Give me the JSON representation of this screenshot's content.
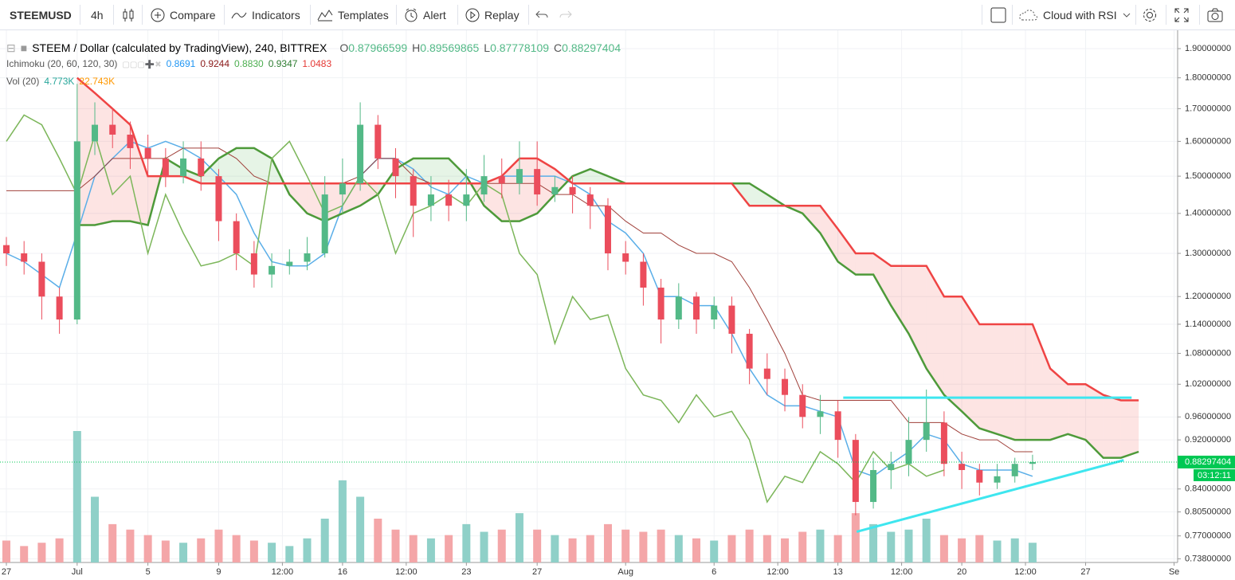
{
  "toolbar": {
    "symbol": "STEEMUSD",
    "interval": "4h",
    "compare": "Compare",
    "indicators": "Indicators",
    "templates": "Templates",
    "alert": "Alert",
    "replay": "Replay",
    "layout": "Cloud with RSI"
  },
  "chart_data": {
    "type": "candlestick",
    "title": "STEEM / Dollar (calculated by TradingView), 240, BITTREX",
    "ohlc_legend": [
      {
        "label": "O",
        "value": "0.87966599"
      },
      {
        "label": "H",
        "value": "0.89569865"
      },
      {
        "label": "L",
        "value": "0.87778109"
      },
      {
        "label": "C",
        "value": "0.88297404"
      }
    ],
    "ichimoku_legend": {
      "name": "Ichimoku (20, 60, 120, 30)",
      "values": [
        "0.8691",
        "0.9244",
        "0.8830",
        "0.9347",
        "1.0483"
      ],
      "colors": [
        "#2196f3",
        "#8b1a1a",
        "#4caf50",
        "#2e7d32",
        "#e53935"
      ]
    },
    "volume_legend": {
      "name": "Vol (20)",
      "values": [
        "4.773K",
        "22.743K"
      ],
      "colors": [
        "#26a69a",
        "#ff9800"
      ]
    },
    "x": [
      0,
      1,
      2,
      3,
      4,
      5,
      6,
      7,
      8,
      9,
      10,
      11,
      12,
      13,
      14,
      15,
      16,
      17,
      18,
      19,
      20,
      21,
      22,
      23,
      24,
      25,
      26,
      27,
      28,
      29,
      30,
      31,
      32,
      33,
      34,
      35,
      36,
      37,
      38,
      39,
      40,
      41,
      42,
      43,
      44,
      45,
      46,
      47,
      48,
      49,
      50,
      51,
      52,
      53,
      54,
      55,
      56,
      57,
      58,
      59,
      60,
      61,
      62,
      63,
      64
    ],
    "open": [
      1.32,
      1.3,
      1.28,
      1.2,
      1.15,
      1.6,
      1.65,
      1.62,
      1.58,
      1.55,
      1.5,
      1.55,
      1.5,
      1.38,
      1.3,
      1.25,
      1.27,
      1.28,
      1.3,
      1.45,
      1.48,
      1.65,
      1.55,
      1.5,
      1.42,
      1.45,
      1.42,
      1.45,
      1.5,
      1.48,
      1.52,
      1.45,
      1.47,
      1.45,
      1.42,
      1.3,
      1.28,
      1.22,
      1.15,
      1.2,
      1.15,
      1.18,
      1.12,
      1.05,
      1.03,
      1.0,
      0.96,
      0.97,
      0.92,
      0.82,
      0.87,
      0.88,
      0.92,
      0.95,
      0.88,
      0.87,
      0.85,
      0.86,
      0.88,
      null,
      null,
      null,
      null,
      null,
      null
    ],
    "high": [
      1.34,
      1.33,
      1.3,
      1.22,
      1.78,
      1.72,
      1.7,
      1.66,
      1.62,
      1.58,
      1.6,
      1.6,
      1.52,
      1.4,
      1.33,
      1.3,
      1.31,
      1.34,
      1.5,
      1.55,
      1.72,
      1.68,
      1.58,
      1.52,
      1.5,
      1.49,
      1.52,
      1.56,
      1.55,
      1.6,
      1.6,
      1.5,
      1.5,
      1.47,
      1.44,
      1.33,
      1.3,
      1.24,
      1.23,
      1.21,
      1.2,
      1.2,
      1.13,
      1.08,
      1.05,
      1.02,
      1.0,
      0.99,
      0.93,
      0.89,
      0.9,
      0.96,
      1.01,
      0.97,
      0.9,
      0.88,
      0.88,
      0.89,
      0.895,
      null,
      null,
      null,
      null,
      null,
      null
    ],
    "low": [
      1.27,
      1.25,
      1.15,
      1.12,
      1.14,
      1.56,
      1.58,
      1.52,
      1.5,
      1.47,
      1.48,
      1.46,
      1.33,
      1.26,
      1.22,
      1.22,
      1.25,
      1.26,
      1.29,
      1.4,
      1.46,
      1.52,
      1.44,
      1.34,
      1.38,
      1.38,
      1.38,
      1.43,
      1.44,
      1.45,
      1.42,
      1.43,
      1.4,
      1.36,
      1.26,
      1.25,
      1.18,
      1.1,
      1.13,
      1.12,
      1.13,
      1.08,
      1.02,
      1.0,
      0.97,
      0.94,
      0.93,
      0.89,
      0.8,
      0.81,
      0.84,
      0.86,
      0.9,
      0.86,
      0.84,
      0.83,
      0.84,
      0.85,
      0.87,
      null,
      null,
      null,
      null,
      null,
      null
    ],
    "close": [
      1.3,
      1.28,
      1.2,
      1.15,
      1.6,
      1.65,
      1.62,
      1.58,
      1.55,
      1.5,
      1.55,
      1.5,
      1.38,
      1.3,
      1.25,
      1.27,
      1.28,
      1.3,
      1.45,
      1.48,
      1.65,
      1.55,
      1.5,
      1.42,
      1.45,
      1.42,
      1.45,
      1.5,
      1.48,
      1.52,
      1.45,
      1.47,
      1.45,
      1.42,
      1.3,
      1.28,
      1.22,
      1.15,
      1.2,
      1.15,
      1.18,
      1.12,
      1.05,
      1.03,
      1.0,
      0.96,
      0.97,
      0.92,
      0.82,
      0.87,
      0.88,
      0.92,
      0.95,
      0.88,
      0.87,
      0.85,
      0.86,
      0.88,
      0.883,
      null,
      null,
      null,
      null,
      null,
      null
    ],
    "colors": {
      "up": "#53b987",
      "down": "#eb4d5c",
      "volume_up": "#8fd0c8",
      "volume_down": "#f4a6a8"
    },
    "volume": [
      20,
      15,
      18,
      22,
      120,
      60,
      35,
      30,
      25,
      20,
      18,
      22,
      30,
      25,
      20,
      18,
      15,
      22,
      40,
      75,
      60,
      40,
      30,
      25,
      22,
      25,
      35,
      28,
      30,
      45,
      30,
      25,
      22,
      25,
      35,
      30,
      28,
      30,
      25,
      22,
      20,
      25,
      30,
      25,
      22,
      28,
      30,
      25,
      45,
      35,
      28,
      30,
      40,
      25,
      22,
      25,
      20,
      22,
      18,
      null,
      null,
      null,
      null,
      null,
      null
    ],
    "series": [
      {
        "color": "#5aaee8",
        "values": [
          1.3,
          1.28,
          1.25,
          1.22,
          1.35,
          1.5,
          1.55,
          1.6,
          1.58,
          1.6,
          1.58,
          1.55,
          1.5,
          1.45,
          1.35,
          1.28,
          1.27,
          1.27,
          1.3,
          1.42,
          1.5,
          1.55,
          1.55,
          1.52,
          1.47,
          1.45,
          1.5,
          1.48,
          1.5,
          1.5,
          1.5,
          1.5,
          1.48,
          1.45,
          1.38,
          1.35,
          1.3,
          1.2,
          1.2,
          1.18,
          1.18,
          1.12,
          1.05,
          1.0,
          0.98,
          0.98,
          0.97,
          0.96,
          0.87,
          0.86,
          0.88,
          0.9,
          0.93,
          0.92,
          0.88,
          0.87,
          0.87,
          0.87,
          0.86,
          null,
          null,
          null,
          null,
          null,
          null
        ]
      },
      {
        "color": "#a0403a",
        "values": [
          1.46,
          1.46,
          1.46,
          1.46,
          1.46,
          1.5,
          1.55,
          1.55,
          1.55,
          1.55,
          1.58,
          1.58,
          1.58,
          1.55,
          1.5,
          1.48,
          1.48,
          1.48,
          1.48,
          1.48,
          1.5,
          1.55,
          1.55,
          1.5,
          1.48,
          1.48,
          1.48,
          1.48,
          1.48,
          1.48,
          1.48,
          1.45,
          1.45,
          1.42,
          1.42,
          1.38,
          1.35,
          1.35,
          1.32,
          1.3,
          1.3,
          1.28,
          1.22,
          1.15,
          1.08,
          1.0,
          0.99,
          0.99,
          0.99,
          0.99,
          0.99,
          0.95,
          0.95,
          0.95,
          0.93,
          0.92,
          0.92,
          0.9,
          0.9,
          null,
          null,
          null,
          null,
          null,
          null
        ]
      },
      {
        "color": "#4e9a3a",
        "values": [
          null,
          null,
          null,
          null,
          1.37,
          1.37,
          1.38,
          1.38,
          1.37,
          1.55,
          1.52,
          1.5,
          1.55,
          1.58,
          1.58,
          1.55,
          1.45,
          1.4,
          1.38,
          1.4,
          1.42,
          1.45,
          1.52,
          1.55,
          1.55,
          1.55,
          1.5,
          1.42,
          1.38,
          1.38,
          1.4,
          1.45,
          1.5,
          1.52,
          1.5,
          1.48,
          1.48,
          1.48,
          1.48,
          1.48,
          1.48,
          1.48,
          1.48,
          1.45,
          1.42,
          1.4,
          1.35,
          1.28,
          1.25,
          1.25,
          1.18,
          1.12,
          1.05,
          1.0,
          0.97,
          0.94,
          0.93,
          0.92,
          0.92,
          0.92,
          0.93,
          0.92,
          0.89,
          0.89,
          0.9
        ]
      },
      {
        "color": "#ef4444",
        "values": [
          null,
          null,
          null,
          null,
          1.8,
          1.75,
          1.7,
          1.65,
          1.5,
          1.5,
          1.5,
          1.48,
          1.48,
          1.48,
          1.48,
          1.48,
          1.48,
          1.48,
          1.48,
          1.48,
          1.48,
          1.48,
          1.48,
          1.48,
          1.48,
          1.48,
          1.48,
          1.48,
          1.5,
          1.55,
          1.55,
          1.52,
          1.48,
          1.48,
          1.48,
          1.48,
          1.48,
          1.48,
          1.48,
          1.48,
          1.48,
          1.48,
          1.42,
          1.42,
          1.42,
          1.42,
          1.42,
          1.36,
          1.3,
          1.3,
          1.27,
          1.27,
          1.27,
          1.2,
          1.2,
          1.14,
          1.14,
          1.14,
          1.14,
          1.05,
          1.02,
          1.02,
          1.0,
          0.99,
          0.99
        ]
      },
      {
        "color": "#7cb65a",
        "values": [
          1.6,
          1.68,
          1.65,
          1.55,
          1.45,
          1.62,
          1.45,
          1.5,
          1.3,
          1.45,
          1.35,
          1.27,
          1.28,
          1.3,
          1.27,
          1.55,
          1.6,
          1.5,
          1.4,
          1.42,
          1.5,
          1.45,
          1.3,
          1.4,
          1.42,
          1.45,
          1.42,
          1.48,
          1.45,
          1.3,
          1.25,
          1.1,
          1.2,
          1.15,
          1.16,
          1.05,
          1.0,
          0.99,
          0.95,
          1.0,
          0.96,
          0.97,
          0.92,
          0.82,
          0.86,
          0.85,
          0.9,
          0.88,
          0.85,
          0.9,
          0.87,
          0.88,
          0.86,
          0.87,
          null,
          null,
          null,
          null,
          null,
          null,
          null,
          null,
          null,
          null,
          null
        ]
      }
    ],
    "cloud_colors": {
      "bull": "#4caf50",
      "bear": "#f44336"
    },
    "drawings": [
      {
        "color": "#3ee6ef",
        "x": [
          47.3,
          63.6
        ],
        "y": [
          0.995,
          0.995
        ]
      },
      {
        "color": "#3ee6ef",
        "x": [
          48.06,
          63.15
        ],
        "y": [
          0.776,
          0.886
        ]
      }
    ],
    "last_price": {
      "value": 0.88297404,
      "countdown": "03:12:11",
      "color": "#00c853"
    },
    "log_scale": true,
    "grid": true,
    "xlim": [
      -0.36,
      66.2
    ],
    "xticks": [
      {
        "value": 0,
        "label": "27"
      },
      {
        "value": 4,
        "label": "Jul"
      },
      {
        "value": 8,
        "label": "5"
      },
      {
        "value": 12,
        "label": "9"
      },
      {
        "value": 15.6,
        "label": "12:00"
      },
      {
        "value": 19,
        "label": "16"
      },
      {
        "value": 22.6,
        "label": "12:00"
      },
      {
        "value": 26,
        "label": "23"
      },
      {
        "value": 30,
        "label": "27"
      },
      {
        "value": 35,
        "label": "Aug"
      },
      {
        "value": 40,
        "label": "6"
      },
      {
        "value": 43.6,
        "label": "12:00"
      },
      {
        "value": 47,
        "label": "13"
      },
      {
        "value": 50.6,
        "label": "12:00"
      },
      {
        "value": 54,
        "label": "20"
      },
      {
        "value": 57.6,
        "label": "12:00"
      },
      {
        "value": 61,
        "label": "27"
      },
      {
        "value": 66,
        "label": "Se"
      }
    ],
    "ylim": [
      0.733,
      1.96
    ],
    "yticks": [
      {
        "value": 1.9,
        "label": "1.90000000"
      },
      {
        "value": 1.8,
        "label": "1.80000000"
      },
      {
        "value": 1.7,
        "label": "1.70000000"
      },
      {
        "value": 1.6,
        "label": "1.60000000"
      },
      {
        "value": 1.5,
        "label": "1.50000000"
      },
      {
        "value": 1.4,
        "label": "1.40000000"
      },
      {
        "value": 1.3,
        "label": "1.30000000"
      },
      {
        "value": 1.2,
        "label": "1.20000000"
      },
      {
        "value": 1.14,
        "label": "1.14000000"
      },
      {
        "value": 1.08,
        "label": "1.08000000"
      },
      {
        "value": 1.02,
        "label": "1.02000000"
      },
      {
        "value": 0.96,
        "label": "0.96000000"
      },
      {
        "value": 0.92,
        "label": "0.92000000"
      },
      {
        "value": 0.84,
        "label": "0.84000000"
      },
      {
        "value": 0.805,
        "label": "0.80500000"
      },
      {
        "value": 0.77,
        "label": "0.77000000"
      },
      {
        "value": 0.738,
        "label": "0.73800000"
      }
    ]
  }
}
